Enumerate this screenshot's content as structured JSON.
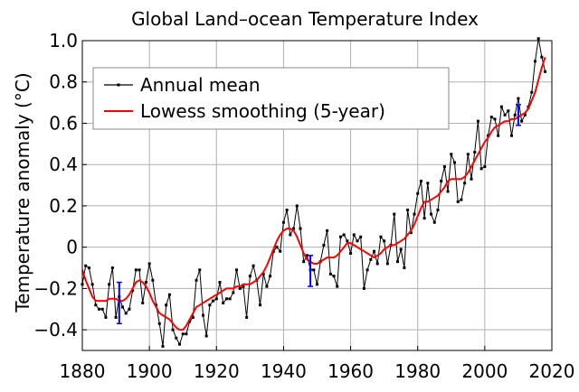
{
  "chart_data": {
    "type": "line",
    "title": "Global Land–ocean Temperature Index",
    "xlabel": "",
    "ylabel": "Temperature anomaly (°C)",
    "xlim": [
      1880,
      2020
    ],
    "ylim": [
      -0.5,
      1.0
    ],
    "x_ticks": [
      1880,
      1900,
      1920,
      1940,
      1960,
      1980,
      2000,
      2020
    ],
    "y_ticks": [
      -0.4,
      -0.2,
      0,
      0.2,
      0.4,
      0.6,
      0.8,
      1.0
    ],
    "y_tick_labels": [
      "−0.4",
      "−0.2",
      "0",
      "0.2",
      "0.4",
      "0.6",
      "0.8",
      "1.0"
    ],
    "grid": true,
    "legend_position": "top-left",
    "series": [
      {
        "name": "Annual mean",
        "color": "#000000",
        "marker": "square",
        "x": [
          1880,
          1881,
          1882,
          1883,
          1884,
          1885,
          1886,
          1887,
          1888,
          1889,
          1890,
          1891,
          1892,
          1893,
          1894,
          1895,
          1896,
          1897,
          1898,
          1899,
          1900,
          1901,
          1902,
          1903,
          1904,
          1905,
          1906,
          1907,
          1908,
          1909,
          1910,
          1911,
          1912,
          1913,
          1914,
          1915,
          1916,
          1917,
          1918,
          1919,
          1920,
          1921,
          1922,
          1923,
          1924,
          1925,
          1926,
          1927,
          1928,
          1929,
          1930,
          1931,
          1932,
          1933,
          1934,
          1935,
          1936,
          1937,
          1938,
          1939,
          1940,
          1941,
          1942,
          1943,
          1944,
          1945,
          1946,
          1947,
          1948,
          1949,
          1950,
          1951,
          1952,
          1953,
          1954,
          1955,
          1956,
          1957,
          1958,
          1959,
          1960,
          1961,
          1962,
          1963,
          1964,
          1965,
          1966,
          1967,
          1968,
          1969,
          1970,
          1971,
          1972,
          1973,
          1974,
          1975,
          1976,
          1977,
          1978,
          1979,
          1980,
          1981,
          1982,
          1983,
          1984,
          1985,
          1986,
          1987,
          1988,
          1989,
          1990,
          1991,
          1992,
          1993,
          1994,
          1995,
          1996,
          1997,
          1998,
          1999,
          2000,
          2001,
          2002,
          2003,
          2004,
          2005,
          2006,
          2007,
          2008,
          2009,
          2010,
          2011,
          2012,
          2013,
          2014,
          2015,
          2016,
          2017,
          2018
        ],
        "values": [
          -0.18,
          -0.09,
          -0.1,
          -0.18,
          -0.28,
          -0.3,
          -0.3,
          -0.34,
          -0.18,
          -0.1,
          -0.34,
          -0.24,
          -0.29,
          -0.32,
          -0.3,
          -0.21,
          -0.11,
          -0.11,
          -0.27,
          -0.17,
          -0.08,
          -0.16,
          -0.28,
          -0.37,
          -0.48,
          -0.28,
          -0.23,
          -0.4,
          -0.44,
          -0.47,
          -0.42,
          -0.42,
          -0.36,
          -0.34,
          -0.16,
          -0.11,
          -0.33,
          -0.43,
          -0.28,
          -0.26,
          -0.25,
          -0.17,
          -0.27,
          -0.25,
          -0.25,
          -0.22,
          -0.11,
          -0.2,
          -0.19,
          -0.34,
          -0.14,
          -0.09,
          -0.16,
          -0.28,
          -0.13,
          -0.19,
          -0.14,
          -0.02,
          -0.0,
          -0.02,
          0.12,
          0.18,
          0.06,
          0.09,
          0.2,
          0.09,
          -0.07,
          -0.04,
          -0.11,
          -0.11,
          -0.18,
          -0.07,
          0.01,
          0.08,
          -0.13,
          -0.14,
          -0.19,
          0.05,
          0.06,
          0.03,
          -0.03,
          0.06,
          0.03,
          0.05,
          -0.2,
          -0.11,
          -0.06,
          -0.02,
          -0.08,
          0.05,
          0.03,
          -0.08,
          0.01,
          0.16,
          -0.07,
          -0.01,
          -0.1,
          0.18,
          0.07,
          0.16,
          0.26,
          0.32,
          0.14,
          0.31,
          0.16,
          0.12,
          0.18,
          0.32,
          0.39,
          0.27,
          0.45,
          0.41,
          0.22,
          0.23,
          0.31,
          0.45,
          0.33,
          0.46,
          0.61,
          0.38,
          0.39,
          0.54,
          0.63,
          0.62,
          0.54,
          0.68,
          0.64,
          0.66,
          0.54,
          0.64,
          0.72,
          0.61,
          0.64,
          0.68,
          0.75,
          0.9,
          1.01,
          0.92,
          0.85
        ]
      },
      {
        "name": "Lowess smoothing (5-year)",
        "color": "#ff0000",
        "x": [
          1880,
          1881,
          1882,
          1883,
          1884,
          1885,
          1886,
          1887,
          1888,
          1889,
          1890,
          1891,
          1892,
          1893,
          1894,
          1895,
          1896,
          1897,
          1898,
          1899,
          1900,
          1901,
          1902,
          1903,
          1904,
          1905,
          1906,
          1907,
          1908,
          1909,
          1910,
          1911,
          1912,
          1913,
          1914,
          1915,
          1916,
          1917,
          1918,
          1919,
          1920,
          1921,
          1922,
          1923,
          1924,
          1925,
          1926,
          1927,
          1928,
          1929,
          1930,
          1931,
          1932,
          1933,
          1934,
          1935,
          1936,
          1937,
          1938,
          1939,
          1940,
          1941,
          1942,
          1943,
          1944,
          1945,
          1946,
          1947,
          1948,
          1949,
          1950,
          1951,
          1952,
          1953,
          1954,
          1955,
          1956,
          1957,
          1958,
          1959,
          1960,
          1961,
          1962,
          1963,
          1964,
          1965,
          1966,
          1967,
          1968,
          1969,
          1970,
          1971,
          1972,
          1973,
          1974,
          1975,
          1976,
          1977,
          1978,
          1979,
          1980,
          1981,
          1982,
          1983,
          1984,
          1985,
          1986,
          1987,
          1988,
          1989,
          1990,
          1991,
          1992,
          1993,
          1994,
          1995,
          1996,
          1997,
          1998,
          1999,
          2000,
          2001,
          2002,
          2003,
          2004,
          2005,
          2006,
          2007,
          2008,
          2009,
          2010,
          2011,
          2012,
          2013,
          2014,
          2015,
          2016,
          2017,
          2018
        ],
        "values": [
          -0.11,
          -0.16,
          -0.2,
          -0.24,
          -0.26,
          -0.26,
          -0.26,
          -0.26,
          -0.25,
          -0.25,
          -0.25,
          -0.26,
          -0.26,
          -0.25,
          -0.23,
          -0.2,
          -0.17,
          -0.16,
          -0.17,
          -0.19,
          -0.22,
          -0.26,
          -0.29,
          -0.32,
          -0.33,
          -0.34,
          -0.35,
          -0.37,
          -0.39,
          -0.4,
          -0.4,
          -0.38,
          -0.35,
          -0.32,
          -0.29,
          -0.28,
          -0.27,
          -0.26,
          -0.25,
          -0.24,
          -0.23,
          -0.22,
          -0.21,
          -0.2,
          -0.2,
          -0.2,
          -0.19,
          -0.19,
          -0.18,
          -0.18,
          -0.18,
          -0.17,
          -0.16,
          -0.14,
          -0.12,
          -0.09,
          -0.05,
          -0.01,
          0.03,
          0.06,
          0.08,
          0.09,
          0.09,
          0.08,
          0.05,
          0.01,
          -0.03,
          -0.06,
          -0.07,
          -0.08,
          -0.08,
          -0.07,
          -0.06,
          -0.05,
          -0.05,
          -0.05,
          -0.04,
          -0.02,
          0.0,
          0.02,
          0.02,
          0.01,
          0.0,
          -0.01,
          -0.02,
          -0.03,
          -0.04,
          -0.05,
          -0.04,
          -0.03,
          -0.01,
          0.0,
          0.01,
          0.01,
          0.02,
          0.03,
          0.04,
          0.06,
          0.08,
          0.11,
          0.15,
          0.19,
          0.22,
          0.22,
          0.23,
          0.24,
          0.25,
          0.27,
          0.29,
          0.32,
          0.33,
          0.33,
          0.33,
          0.33,
          0.34,
          0.36,
          0.39,
          0.42,
          0.45,
          0.48,
          0.51,
          0.53,
          0.56,
          0.58,
          0.59,
          0.6,
          0.61,
          0.61,
          0.62,
          0.62,
          0.63,
          0.64,
          0.65,
          0.67,
          0.71,
          0.75,
          0.81,
          0.87,
          0.92
        ]
      }
    ],
    "error_bars": [
      {
        "x": 1891,
        "low": -0.37,
        "high": -0.17
      },
      {
        "x": 1948,
        "low": -0.19,
        "high": -0.04
      },
      {
        "x": 2010,
        "low": 0.59,
        "high": 0.69
      }
    ],
    "error_bar_color": "#0000ff"
  }
}
